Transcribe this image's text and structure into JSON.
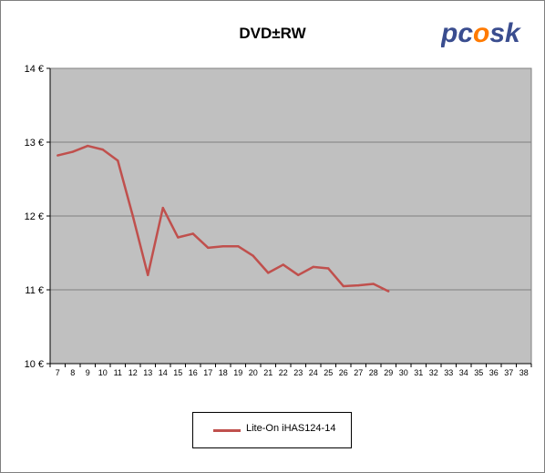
{
  "logo": {
    "text_left": "pc",
    "text_flame": "o",
    "text_right": "sk"
  },
  "chart_data": {
    "type": "line",
    "title": "DVD±RW",
    "xlabel": "",
    "ylabel": "",
    "categories": [
      "7",
      "8",
      "9",
      "10",
      "11",
      "12",
      "13",
      "14",
      "15",
      "16",
      "17",
      "18",
      "19",
      "20",
      "21",
      "22",
      "23",
      "24",
      "25",
      "26",
      "27",
      "28",
      "29",
      "30",
      "31",
      "32",
      "33",
      "34",
      "35",
      "36",
      "37",
      "38"
    ],
    "y_tick_labels": [
      "14 €",
      "13 €",
      "12 €",
      "11 €",
      "10 €"
    ],
    "ylim": [
      10,
      14
    ],
    "grid": "horizontal",
    "legend_position": "bottom",
    "series": [
      {
        "name": "Lite-On  iHAS124-14",
        "color": "#c0504d",
        "x": [
          "7",
          "8",
          "9",
          "10",
          "11",
          "12",
          "13",
          "14",
          "15",
          "16",
          "17",
          "18",
          "19",
          "20",
          "21",
          "22",
          "23",
          "24",
          "25",
          "26",
          "27",
          "28",
          "29"
        ],
        "values": [
          12.82,
          12.87,
          12.95,
          12.9,
          12.75,
          12.0,
          11.2,
          12.11,
          11.71,
          11.76,
          11.57,
          11.59,
          11.59,
          11.46,
          11.23,
          11.34,
          11.2,
          11.31,
          11.29,
          11.05,
          11.06,
          11.08,
          10.98
        ]
      }
    ]
  }
}
